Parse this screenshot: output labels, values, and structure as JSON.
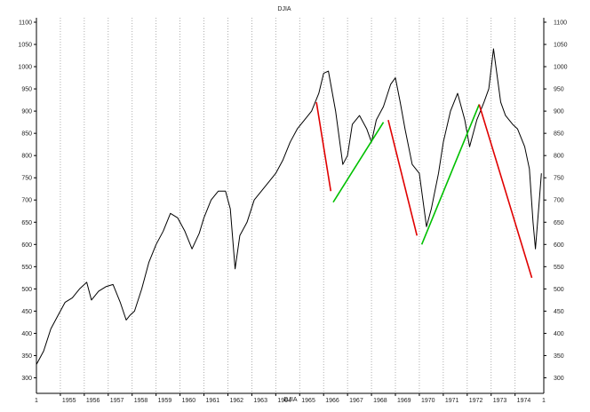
{
  "chart_data": {
    "type": "line",
    "title": "DJIA",
    "footer_label": "DJIA",
    "y_ticks": [
      300,
      350,
      400,
      450,
      500,
      550,
      600,
      650,
      700,
      750,
      800,
      850,
      900,
      950,
      1000,
      1050,
      1100
    ],
    "ylim": [
      265,
      1110
    ],
    "x_tick_labels": [
      "1955",
      "1956",
      "1957",
      "1958",
      "1959",
      "1960",
      "1961",
      "1962",
      "1963",
      "1964",
      "1965",
      "1966",
      "1967",
      "1968",
      "1969",
      "1970",
      "1971",
      "1972",
      "1973",
      "1974"
    ],
    "x_first_label": "1",
    "x_last_label": "1",
    "xlim": [
      1954.0,
      1975.2
    ],
    "grid": true,
    "series": [
      {
        "color": "#000000",
        "x": [
          1954.0,
          1954.3,
          1954.6,
          1954.9,
          1955.2,
          1955.5,
          1955.8,
          1956.1,
          1956.3,
          1956.6,
          1956.9,
          1957.2,
          1957.5,
          1957.75,
          1957.9,
          1958.1,
          1958.4,
          1958.7,
          1959.0,
          1959.3,
          1959.6,
          1959.9,
          1960.2,
          1960.5,
          1960.8,
          1961.0,
          1961.3,
          1961.6,
          1961.9,
          1962.1,
          1962.3,
          1962.5,
          1962.8,
          1963.1,
          1963.4,
          1963.7,
          1964.0,
          1964.3,
          1964.6,
          1964.9,
          1965.2,
          1965.5,
          1965.8,
          1966.0,
          1966.2,
          1966.5,
          1966.8,
          1967.0,
          1967.2,
          1967.5,
          1967.8,
          1968.0,
          1968.2,
          1968.5,
          1968.8,
          1969.0,
          1969.2,
          1969.4,
          1969.7,
          1970.0,
          1970.3,
          1970.5,
          1970.8,
          1971.0,
          1971.3,
          1971.6,
          1971.9,
          1972.1,
          1972.4,
          1972.7,
          1972.9,
          1973.1,
          1973.4,
          1973.6,
          1973.9,
          1974.1,
          1974.4,
          1974.6,
          1974.75,
          1974.85,
          1975.0,
          1975.1
        ],
        "y": [
          330,
          360,
          410,
          440,
          470,
          480,
          500,
          515,
          475,
          495,
          505,
          510,
          470,
          430,
          440,
          450,
          500,
          560,
          600,
          630,
          670,
          660,
          630,
          590,
          625,
          660,
          700,
          720,
          720,
          680,
          545,
          620,
          650,
          700,
          720,
          740,
          760,
          790,
          830,
          860,
          880,
          900,
          940,
          985,
          990,
          900,
          780,
          800,
          870,
          890,
          860,
          830,
          880,
          910,
          960,
          975,
          920,
          860,
          780,
          760,
          640,
          680,
          760,
          830,
          900,
          940,
          880,
          820,
          880,
          920,
          950,
          1040,
          920,
          890,
          870,
          860,
          820,
          770,
          650,
          590,
          690,
          760
        ]
      }
    ],
    "trend_lines": [
      {
        "color": "#e00000",
        "x": [
          1965.7,
          1966.3
        ],
        "y": [
          920,
          720
        ]
      },
      {
        "color": "#00c000",
        "x": [
          1966.4,
          1968.5
        ],
        "y": [
          695,
          875
        ]
      },
      {
        "color": "#e00000",
        "x": [
          1968.7,
          1969.9
        ],
        "y": [
          880,
          620
        ]
      },
      {
        "color": "#00c000",
        "x": [
          1970.1,
          1972.5
        ],
        "y": [
          600,
          915
        ]
      },
      {
        "color": "#e00000",
        "x": [
          1972.5,
          1974.7
        ],
        "y": [
          915,
          525
        ]
      }
    ]
  }
}
